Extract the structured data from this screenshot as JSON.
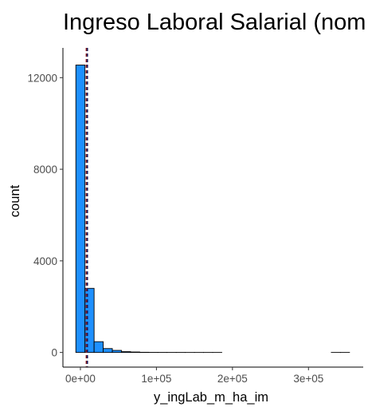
{
  "chart_data": {
    "type": "bar",
    "subtype": "histogram",
    "title": "Ingreso Laboral Salarial (nom",
    "xlabel": "y_ingLab_m_ha_im",
    "ylabel": "count",
    "bin_width": 12000,
    "bin_start": -6000,
    "bins": [
      {
        "x": 0,
        "count": 12550
      },
      {
        "x": 12000,
        "count": 2800
      },
      {
        "x": 24000,
        "count": 470
      },
      {
        "x": 36000,
        "count": 170
      },
      {
        "x": 48000,
        "count": 90
      },
      {
        "x": 60000,
        "count": 35
      },
      {
        "x": 72000,
        "count": 20
      },
      {
        "x": 84000,
        "count": 8
      },
      {
        "x": 96000,
        "count": 4
      },
      {
        "x": 108000,
        "count": 3
      },
      {
        "x": 120000,
        "count": 2
      },
      {
        "x": 132000,
        "count": 2
      },
      {
        "x": 144000,
        "count": 1
      },
      {
        "x": 156000,
        "count": 1
      },
      {
        "x": 168000,
        "count": 1
      },
      {
        "x": 180000,
        "count": 1
      },
      {
        "x": 192000,
        "count": 0
      },
      {
        "x": 204000,
        "count": 0
      },
      {
        "x": 216000,
        "count": 0
      },
      {
        "x": 228000,
        "count": 0
      },
      {
        "x": 240000,
        "count": 0
      },
      {
        "x": 252000,
        "count": 0
      },
      {
        "x": 264000,
        "count": 0
      },
      {
        "x": 276000,
        "count": 0
      },
      {
        "x": 288000,
        "count": 0
      },
      {
        "x": 300000,
        "count": 0
      },
      {
        "x": 312000,
        "count": 0
      },
      {
        "x": 324000,
        "count": 0
      },
      {
        "x": 336000,
        "count": 1
      },
      {
        "x": 348000,
        "count": 1
      }
    ],
    "reference_lines": [
      {
        "x": 7800,
        "color": "#8b1a1a",
        "style": "dashed"
      },
      {
        "x": 9200,
        "color": "#1a1a5a",
        "style": "dashed"
      }
    ],
    "xlim": [
      -23000,
      372000
    ],
    "ylim": [
      -640,
      13300
    ],
    "x_ticks": [
      {
        "value": 0,
        "label": "0e+00"
      },
      {
        "value": 100000,
        "label": "1e+05"
      },
      {
        "value": 200000,
        "label": "2e+05"
      },
      {
        "value": 300000,
        "label": "3e+05"
      }
    ],
    "y_ticks": [
      {
        "value": 0,
        "label": "0"
      },
      {
        "value": 4000,
        "label": "4000"
      },
      {
        "value": 8000,
        "label": "8000"
      },
      {
        "value": 12000,
        "label": "12000"
      }
    ],
    "bar_fill": "#1e90ff",
    "bar_stroke": "#000000",
    "grid": false
  }
}
